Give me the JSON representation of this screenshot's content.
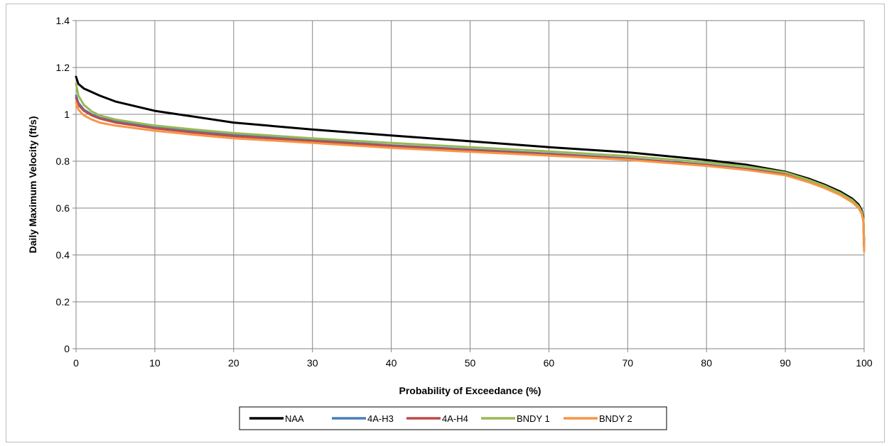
{
  "chart_data": {
    "type": "line",
    "title": "",
    "xlabel": "Probability of Exceedance  (%)",
    "ylabel": "Daily Maximum Velocity (ft/s)",
    "xlim": [
      0,
      100
    ],
    "ylim": [
      0,
      1.4
    ],
    "x_ticks": [
      "0",
      "10",
      "20",
      "30",
      "40",
      "50",
      "60",
      "70",
      "80",
      "90",
      "100"
    ],
    "y_ticks": [
      "0",
      "0.2",
      "0.4",
      "0.6",
      "0.8",
      "1",
      "1.2",
      "1.4"
    ],
    "grid": true,
    "legend_position": "bottom",
    "series": [
      {
        "name": "NAA",
        "color": "#000000",
        "points": [
          [
            0,
            1.16
          ],
          [
            0.3,
            1.13
          ],
          [
            1,
            1.11
          ],
          [
            2,
            1.095
          ],
          [
            3,
            1.08
          ],
          [
            5,
            1.055
          ],
          [
            10,
            1.015
          ],
          [
            15,
            0.99
          ],
          [
            20,
            0.965
          ],
          [
            30,
            0.935
          ],
          [
            40,
            0.91
          ],
          [
            50,
            0.885
          ],
          [
            60,
            0.86
          ],
          [
            70,
            0.838
          ],
          [
            80,
            0.805
          ],
          [
            85,
            0.785
          ],
          [
            90,
            0.755
          ],
          [
            93,
            0.725
          ],
          [
            95,
            0.7
          ],
          [
            97,
            0.67
          ],
          [
            98.5,
            0.64
          ],
          [
            99.3,
            0.615
          ],
          [
            99.7,
            0.59
          ],
          [
            99.9,
            0.56
          ],
          [
            100,
            0.44
          ]
        ]
      },
      {
        "name": "4A-H3",
        "color": "#4a7ebb",
        "points": [
          [
            0,
            1.08
          ],
          [
            0.3,
            1.05
          ],
          [
            1,
            1.02
          ],
          [
            2,
            1.0
          ],
          [
            3,
            0.985
          ],
          [
            5,
            0.97
          ],
          [
            10,
            0.945
          ],
          [
            15,
            0.928
          ],
          [
            20,
            0.912
          ],
          [
            30,
            0.89
          ],
          [
            40,
            0.868
          ],
          [
            50,
            0.85
          ],
          [
            60,
            0.832
          ],
          [
            70,
            0.812
          ],
          [
            80,
            0.785
          ],
          [
            85,
            0.768
          ],
          [
            90,
            0.745
          ],
          [
            93,
            0.715
          ],
          [
            95,
            0.69
          ],
          [
            97,
            0.66
          ],
          [
            98.5,
            0.63
          ],
          [
            99.3,
            0.605
          ],
          [
            99.7,
            0.58
          ],
          [
            99.9,
            0.55
          ],
          [
            100,
            0.43
          ]
        ]
      },
      {
        "name": "4A-H4",
        "color": "#be4b48",
        "points": [
          [
            0,
            1.07
          ],
          [
            0.3,
            1.04
          ],
          [
            1,
            1.015
          ],
          [
            2,
            0.995
          ],
          [
            3,
            0.982
          ],
          [
            5,
            0.965
          ],
          [
            10,
            0.94
          ],
          [
            15,
            0.922
          ],
          [
            20,
            0.907
          ],
          [
            30,
            0.886
          ],
          [
            40,
            0.865
          ],
          [
            50,
            0.847
          ],
          [
            60,
            0.829
          ],
          [
            70,
            0.81
          ],
          [
            80,
            0.783
          ],
          [
            85,
            0.766
          ],
          [
            90,
            0.743
          ],
          [
            93,
            0.713
          ],
          [
            95,
            0.688
          ],
          [
            97,
            0.658
          ],
          [
            98.5,
            0.628
          ],
          [
            99.3,
            0.603
          ],
          [
            99.7,
            0.578
          ],
          [
            99.9,
            0.548
          ],
          [
            100,
            0.43
          ]
        ]
      },
      {
        "name": "BNDY 1",
        "color": "#98b954",
        "points": [
          [
            0,
            1.13
          ],
          [
            0.3,
            1.08
          ],
          [
            1,
            1.04
          ],
          [
            2,
            1.012
          ],
          [
            3,
            0.995
          ],
          [
            5,
            0.978
          ],
          [
            10,
            0.952
          ],
          [
            15,
            0.935
          ],
          [
            20,
            0.92
          ],
          [
            30,
            0.898
          ],
          [
            40,
            0.878
          ],
          [
            50,
            0.86
          ],
          [
            60,
            0.842
          ],
          [
            70,
            0.822
          ],
          [
            80,
            0.795
          ],
          [
            85,
            0.778
          ],
          [
            90,
            0.752
          ],
          [
            93,
            0.72
          ],
          [
            95,
            0.695
          ],
          [
            97,
            0.664
          ],
          [
            98.5,
            0.634
          ],
          [
            99.3,
            0.608
          ],
          [
            99.7,
            0.583
          ],
          [
            99.9,
            0.553
          ],
          [
            100,
            0.43
          ]
        ]
      },
      {
        "name": "BNDY 2",
        "color": "#f79646",
        "points": [
          [
            0,
            1.05
          ],
          [
            0.3,
            1.02
          ],
          [
            1,
            0.995
          ],
          [
            2,
            0.978
          ],
          [
            3,
            0.965
          ],
          [
            5,
            0.952
          ],
          [
            10,
            0.93
          ],
          [
            15,
            0.913
          ],
          [
            20,
            0.898
          ],
          [
            30,
            0.878
          ],
          [
            40,
            0.857
          ],
          [
            50,
            0.84
          ],
          [
            60,
            0.824
          ],
          [
            70,
            0.806
          ],
          [
            80,
            0.78
          ],
          [
            85,
            0.763
          ],
          [
            90,
            0.74
          ],
          [
            93,
            0.71
          ],
          [
            95,
            0.685
          ],
          [
            97,
            0.655
          ],
          [
            98.5,
            0.625
          ],
          [
            99.3,
            0.6
          ],
          [
            99.7,
            0.575
          ],
          [
            99.9,
            0.545
          ],
          [
            100,
            0.415
          ]
        ]
      }
    ]
  }
}
